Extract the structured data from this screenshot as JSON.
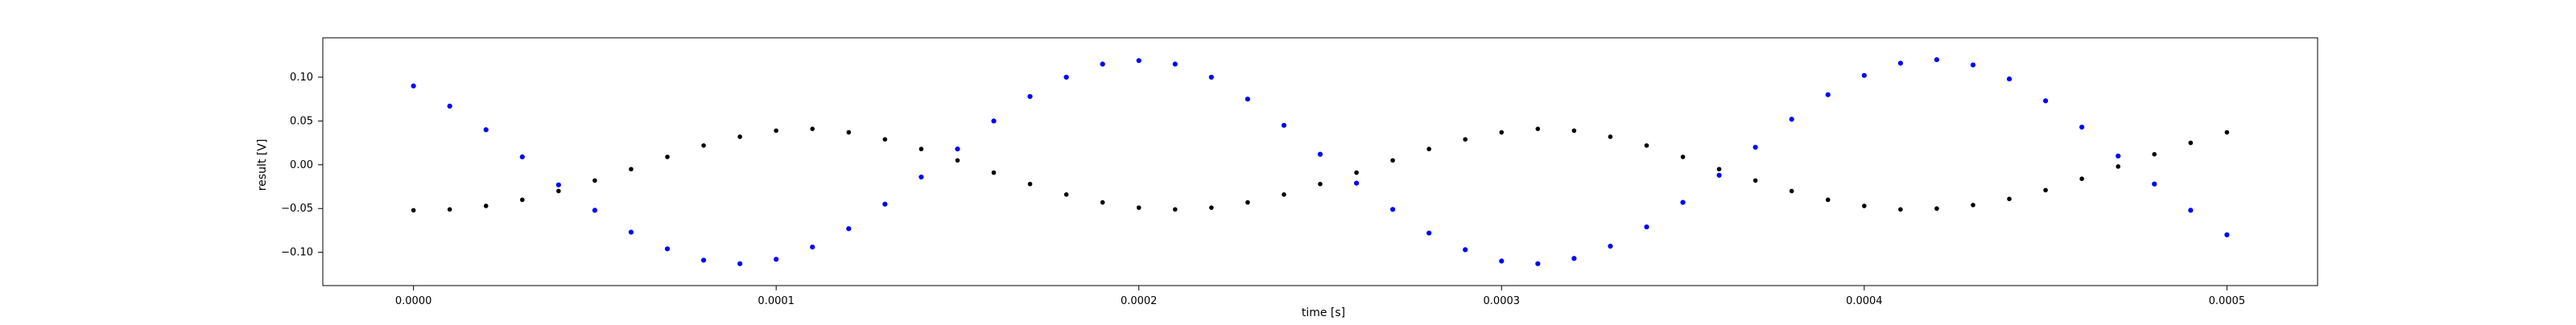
{
  "chart_data": {
    "type": "scatter",
    "title": "",
    "xlabel": "time [s]",
    "ylabel": "result [V]",
    "xlim": [
      -2.5e-05,
      0.000525
    ],
    "ylim": [
      -0.138,
      0.145
    ],
    "grid": false,
    "legend": "none",
    "x_ticks": [
      {
        "value": 0.0,
        "label": "0.0000"
      },
      {
        "value": 0.0001,
        "label": "0.0001"
      },
      {
        "value": 0.0002,
        "label": "0.0002"
      },
      {
        "value": 0.0003,
        "label": "0.0003"
      },
      {
        "value": 0.0004,
        "label": "0.0004"
      },
      {
        "value": 0.0005,
        "label": "0.0005"
      }
    ],
    "y_ticks": [
      {
        "value": 0.1,
        "label": "0.10"
      },
      {
        "value": 0.05,
        "label": "0.05"
      },
      {
        "value": 0.0,
        "label": "0.00"
      },
      {
        "value": -0.05,
        "label": "−0.05"
      },
      {
        "value": -0.1,
        "label": "−0.10"
      }
    ],
    "series": [
      {
        "color": "#0000ff",
        "x": [
          0,
          1e-05,
          2e-05,
          3e-05,
          4e-05,
          5e-05,
          6e-05,
          7e-05,
          8e-05,
          9e-05,
          0.0001,
          0.00011,
          0.00012,
          0.00013,
          0.00014,
          0.00015,
          0.00016,
          0.00017,
          0.00018,
          0.00019,
          0.0002,
          0.00021,
          0.00022,
          0.00023,
          0.00024,
          0.00025,
          0.00026,
          0.00027,
          0.00028,
          0.00029,
          0.0003,
          0.00031,
          0.00032,
          0.00033,
          0.00034,
          0.00035,
          0.00036,
          0.00037,
          0.00038,
          0.00039,
          0.0004,
          0.00041,
          0.00042,
          0.00043,
          0.00044,
          0.00045,
          0.00046,
          0.00047,
          0.00048,
          0.00049,
          0.0005
        ],
        "y": [
          0.09,
          0.067,
          0.04,
          0.009,
          -0.023,
          -0.052,
          -0.077,
          -0.096,
          -0.109,
          -0.113,
          -0.108,
          -0.094,
          -0.073,
          -0.045,
          -0.014,
          0.018,
          0.05,
          0.078,
          0.1,
          0.115,
          0.119,
          0.115,
          0.1,
          0.075,
          0.045,
          0.012,
          -0.021,
          -0.051,
          -0.078,
          -0.097,
          -0.11,
          -0.113,
          -0.107,
          -0.093,
          -0.071,
          -0.043,
          -0.012,
          0.02,
          0.052,
          0.08,
          0.102,
          0.116,
          0.12,
          0.114,
          0.098,
          0.073,
          0.043,
          0.01,
          -0.022,
          -0.052,
          -0.08
        ]
      },
      {
        "color": "#000000",
        "x": [
          0,
          1e-05,
          2e-05,
          3e-05,
          4e-05,
          5e-05,
          6e-05,
          7e-05,
          8e-05,
          9e-05,
          0.0001,
          0.00011,
          0.00012,
          0.00013,
          0.00014,
          0.00015,
          0.00016,
          0.00017,
          0.00018,
          0.00019,
          0.0002,
          0.00021,
          0.00022,
          0.00023,
          0.00024,
          0.00025,
          0.00026,
          0.00027,
          0.00028,
          0.00029,
          0.0003,
          0.00031,
          0.00032,
          0.00033,
          0.00034,
          0.00035,
          0.00036,
          0.00037,
          0.00038,
          0.00039,
          0.0004,
          0.00041,
          0.00042,
          0.00043,
          0.00044,
          0.00045,
          0.00046,
          0.00047,
          0.00048,
          0.00049,
          0.0005
        ],
        "y": [
          -0.052,
          -0.051,
          -0.047,
          -0.04,
          -0.03,
          -0.018,
          -0.005,
          0.009,
          0.022,
          0.032,
          0.039,
          0.041,
          0.037,
          0.029,
          0.018,
          0.005,
          -0.009,
          -0.022,
          -0.034,
          -0.043,
          -0.049,
          -0.051,
          -0.049,
          -0.043,
          -0.034,
          -0.022,
          -0.009,
          0.005,
          0.018,
          0.029,
          0.037,
          0.041,
          0.039,
          0.032,
          0.022,
          0.009,
          -0.005,
          -0.018,
          -0.03,
          -0.04,
          -0.047,
          -0.051,
          -0.05,
          -0.046,
          -0.039,
          -0.029,
          -0.016,
          -0.002,
          0.012,
          0.025,
          0.037
        ]
      }
    ]
  }
}
